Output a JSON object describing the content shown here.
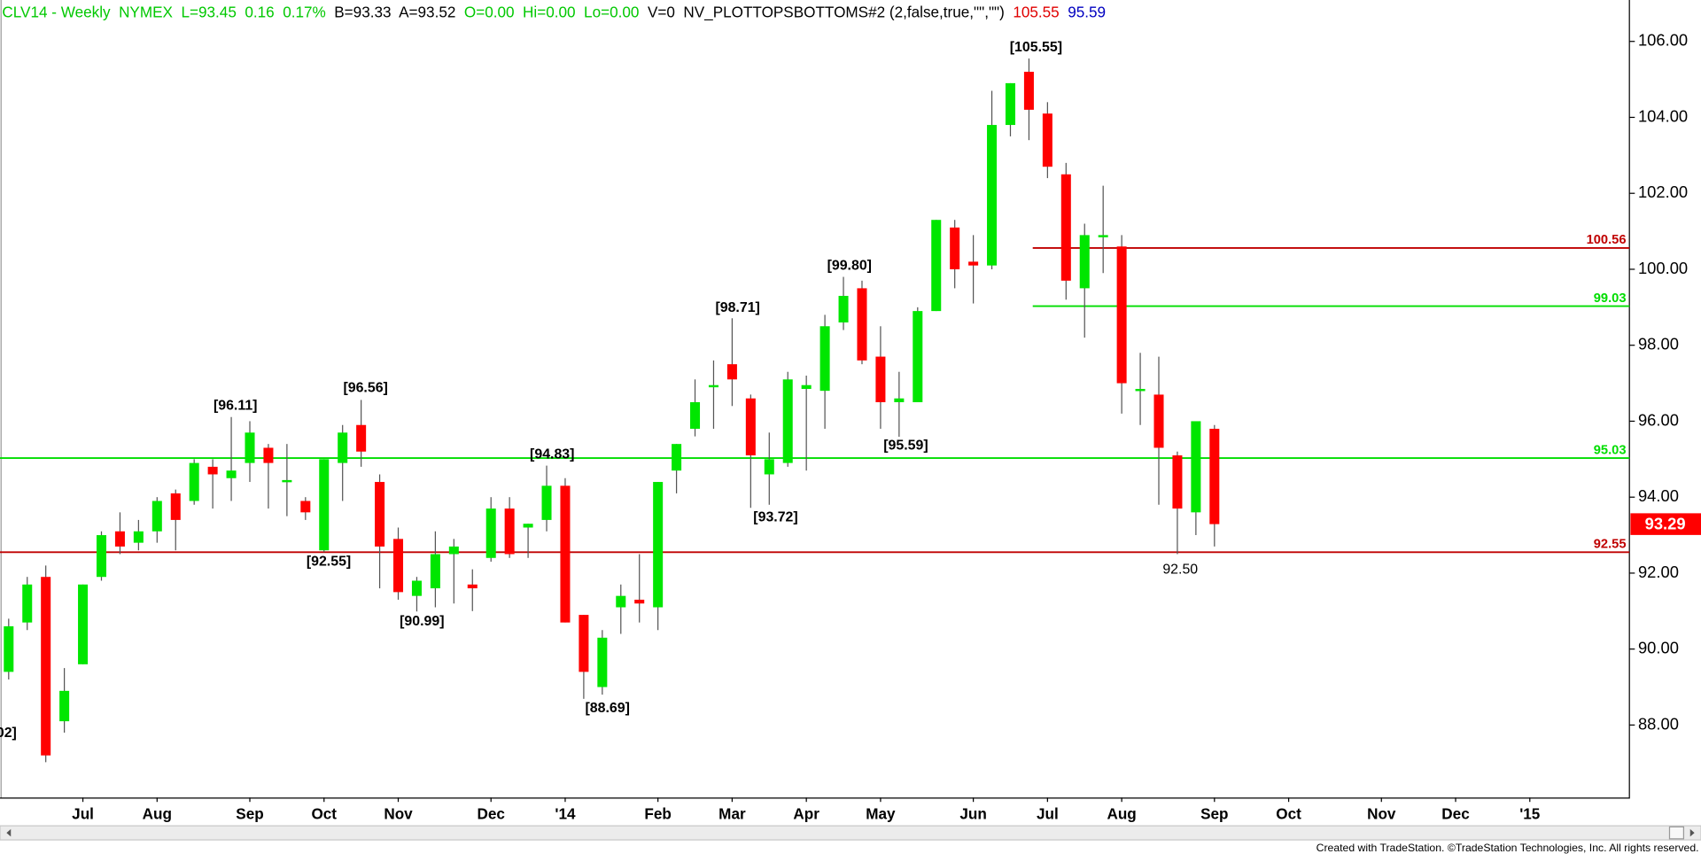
{
  "chart_data": {
    "type": "candlestick",
    "header": [
      {
        "text": "CLV14 - Weekly  NYMEX  L=93.45  0.16  0.17%  ",
        "color": "#00c800"
      },
      {
        "text": "B=93.33  A=93.52  ",
        "color": "#000000"
      },
      {
        "text": "O=0.00  Hi=0.00  Lo=0.00  ",
        "color": "#00c800"
      },
      {
        "text": "V=0  NV_PLOTTOPSBOTTOMS#2 (2,false,true,\"\",\"\")  ",
        "color": "#000000"
      },
      {
        "text": "105.55  ",
        "color": "#e00000"
      },
      {
        "text": "95.59",
        "color": "#0000c0"
      }
    ],
    "categories": [
      null,
      null,
      null,
      null,
      "Jul",
      null,
      null,
      null,
      "Aug",
      null,
      null,
      null,
      null,
      "Sep",
      null,
      null,
      null,
      "Oct",
      null,
      null,
      null,
      "Nov",
      null,
      null,
      null,
      null,
      "Dec",
      null,
      null,
      null,
      "'14",
      null,
      null,
      null,
      null,
      "Feb",
      null,
      null,
      null,
      "Mar",
      null,
      null,
      null,
      "Apr",
      null,
      null,
      null,
      "May",
      null,
      null,
      null,
      null,
      "Jun",
      null,
      null,
      null,
      "Jul",
      null,
      null,
      null,
      "Aug",
      null,
      null,
      null,
      null,
      "Sep",
      null,
      null,
      null,
      "Oct",
      null,
      null,
      null,
      null,
      "Nov",
      null,
      null,
      null,
      "Dec",
      null,
      null,
      null,
      "'15",
      null,
      null,
      null,
      null,
      null
    ],
    "open": [
      89.4,
      90.7,
      91.9,
      88.1,
      89.6,
      91.9,
      93.1,
      92.8,
      93.1,
      94.1,
      93.9,
      94.8,
      94.5,
      94.9,
      95.3,
      94.4,
      93.9,
      92.6,
      94.9,
      95.9,
      94.4,
      92.9,
      91.4,
      91.6,
      92.5,
      91.7,
      92.4,
      93.7,
      93.2,
      93.4,
      94.3,
      90.9,
      89.0,
      91.1,
      91.3,
      91.1,
      94.7,
      95.8,
      96.9,
      97.5,
      96.6,
      94.6,
      94.9,
      96.85,
      96.8,
      98.6,
      99.5,
      97.7,
      96.5,
      96.5,
      98.9,
      101.1,
      100.2,
      100.1,
      103.8,
      105.2,
      104.1,
      102.5,
      99.5,
      100.85,
      100.6,
      96.8,
      96.7,
      95.1,
      93.6,
      95.8,
      null,
      null,
      null,
      null,
      null,
      null,
      null,
      null,
      null,
      null,
      null,
      null,
      null,
      null,
      null,
      null,
      null,
      null,
      null,
      null,
      null,
      null
    ],
    "high": [
      90.8,
      91.9,
      92.2,
      89.5,
      91.7,
      93.1,
      93.6,
      93.4,
      94.0,
      94.2,
      95.0,
      95.0,
      96.11,
      96.0,
      95.4,
      95.4,
      94.0,
      95.0,
      95.9,
      96.56,
      94.6,
      93.2,
      91.9,
      93.1,
      92.9,
      92.1,
      94.0,
      94.0,
      93.3,
      94.83,
      94.5,
      90.9,
      90.5,
      91.7,
      92.5,
      94.4,
      95.4,
      97.1,
      97.6,
      98.71,
      96.7,
      95.7,
      97.3,
      97.2,
      98.8,
      99.8,
      99.7,
      98.5,
      97.3,
      99.0,
      101.3,
      101.3,
      100.9,
      104.7,
      104.9,
      105.55,
      104.4,
      102.8,
      101.2,
      102.2,
      100.9,
      97.8,
      97.7,
      95.2,
      96.0,
      95.9,
      null,
      null,
      null,
      null,
      null,
      null,
      null,
      null,
      null,
      null,
      null,
      null,
      null,
      null,
      null,
      null,
      null,
      null,
      null,
      null,
      null,
      null
    ],
    "low": [
      89.2,
      90.5,
      87.02,
      87.8,
      89.6,
      91.8,
      92.5,
      92.6,
      92.8,
      92.6,
      93.8,
      93.7,
      93.9,
      94.4,
      93.7,
      93.5,
      93.4,
      92.55,
      93.9,
      94.8,
      91.6,
      91.3,
      90.99,
      91.1,
      91.2,
      91.0,
      92.3,
      92.4,
      92.4,
      93.1,
      90.7,
      88.69,
      88.8,
      90.4,
      90.7,
      90.5,
      94.1,
      95.6,
      95.8,
      96.4,
      93.72,
      93.8,
      94.8,
      94.7,
      95.8,
      98.4,
      97.5,
      95.8,
      95.59,
      96.5,
      98.9,
      99.5,
      99.1,
      100.0,
      103.5,
      103.4,
      102.4,
      99.2,
      98.2,
      99.9,
      96.2,
      95.9,
      93.8,
      92.5,
      93.0,
      92.7,
      null,
      null,
      null,
      null,
      null,
      null,
      null,
      null,
      null,
      null,
      null,
      null,
      null,
      null,
      null,
      null,
      null,
      null,
      null,
      null,
      null,
      null
    ],
    "close": [
      90.6,
      91.7,
      87.2,
      88.9,
      91.7,
      93.0,
      92.7,
      93.1,
      93.9,
      93.4,
      94.9,
      94.6,
      94.7,
      95.7,
      94.9,
      94.45,
      93.6,
      95.0,
      95.7,
      95.2,
      92.7,
      91.5,
      91.8,
      92.5,
      92.7,
      91.6,
      93.7,
      92.5,
      93.3,
      94.3,
      90.7,
      89.4,
      90.3,
      91.4,
      91.2,
      94.4,
      95.4,
      96.5,
      96.95,
      97.1,
      95.1,
      95.0,
      97.1,
      96.95,
      98.5,
      99.3,
      97.6,
      96.5,
      96.6,
      98.9,
      101.3,
      100.0,
      100.1,
      103.8,
      104.9,
      104.2,
      102.7,
      99.7,
      100.9,
      100.9,
      97.0,
      96.85,
      95.3,
      93.7,
      96.0,
      93.29,
      null,
      null,
      null,
      null,
      null,
      null,
      null,
      null,
      null,
      null,
      null,
      null,
      null,
      null,
      null,
      null,
      null,
      null,
      null,
      null,
      null,
      null
    ],
    "up_color": "#00e600",
    "down_color": "#ff0000",
    "ylim": [
      86.09,
      107.09
    ],
    "yticks": [
      {
        "value": 88,
        "label": "88.00"
      },
      {
        "value": 90,
        "label": "90.00"
      },
      {
        "value": 92,
        "label": "92.00"
      },
      {
        "value": 94,
        "label": "94.00"
      },
      {
        "value": 96,
        "label": "96.00"
      },
      {
        "value": 98,
        "label": "98.00"
      },
      {
        "value": 100,
        "label": "100.00"
      },
      {
        "value": 102,
        "label": "102.00"
      },
      {
        "value": 104,
        "label": "104.00"
      },
      {
        "value": 106,
        "label": "106.00"
      }
    ],
    "hlines": [
      {
        "value": 100.56,
        "color": "#c00000"
      },
      {
        "value": 99.03,
        "color": "#00dd00"
      },
      {
        "value": 95.03,
        "color": "#00dd00"
      },
      {
        "value": 92.55,
        "color": "#c00000"
      }
    ],
    "annotations": [
      "[105.55]",
      "[99.80]",
      "[98.71]",
      "[96.56]",
      "[96.11]",
      "[94.83]",
      "[95.59]",
      "[93.72]",
      "[92.55]",
      "[90.99]",
      "[88.69]",
      "92.50",
      "02]"
    ]
  },
  "footer": "Created with TradeStation. ©TradeStation Technologies, Inc. All rights reserved."
}
